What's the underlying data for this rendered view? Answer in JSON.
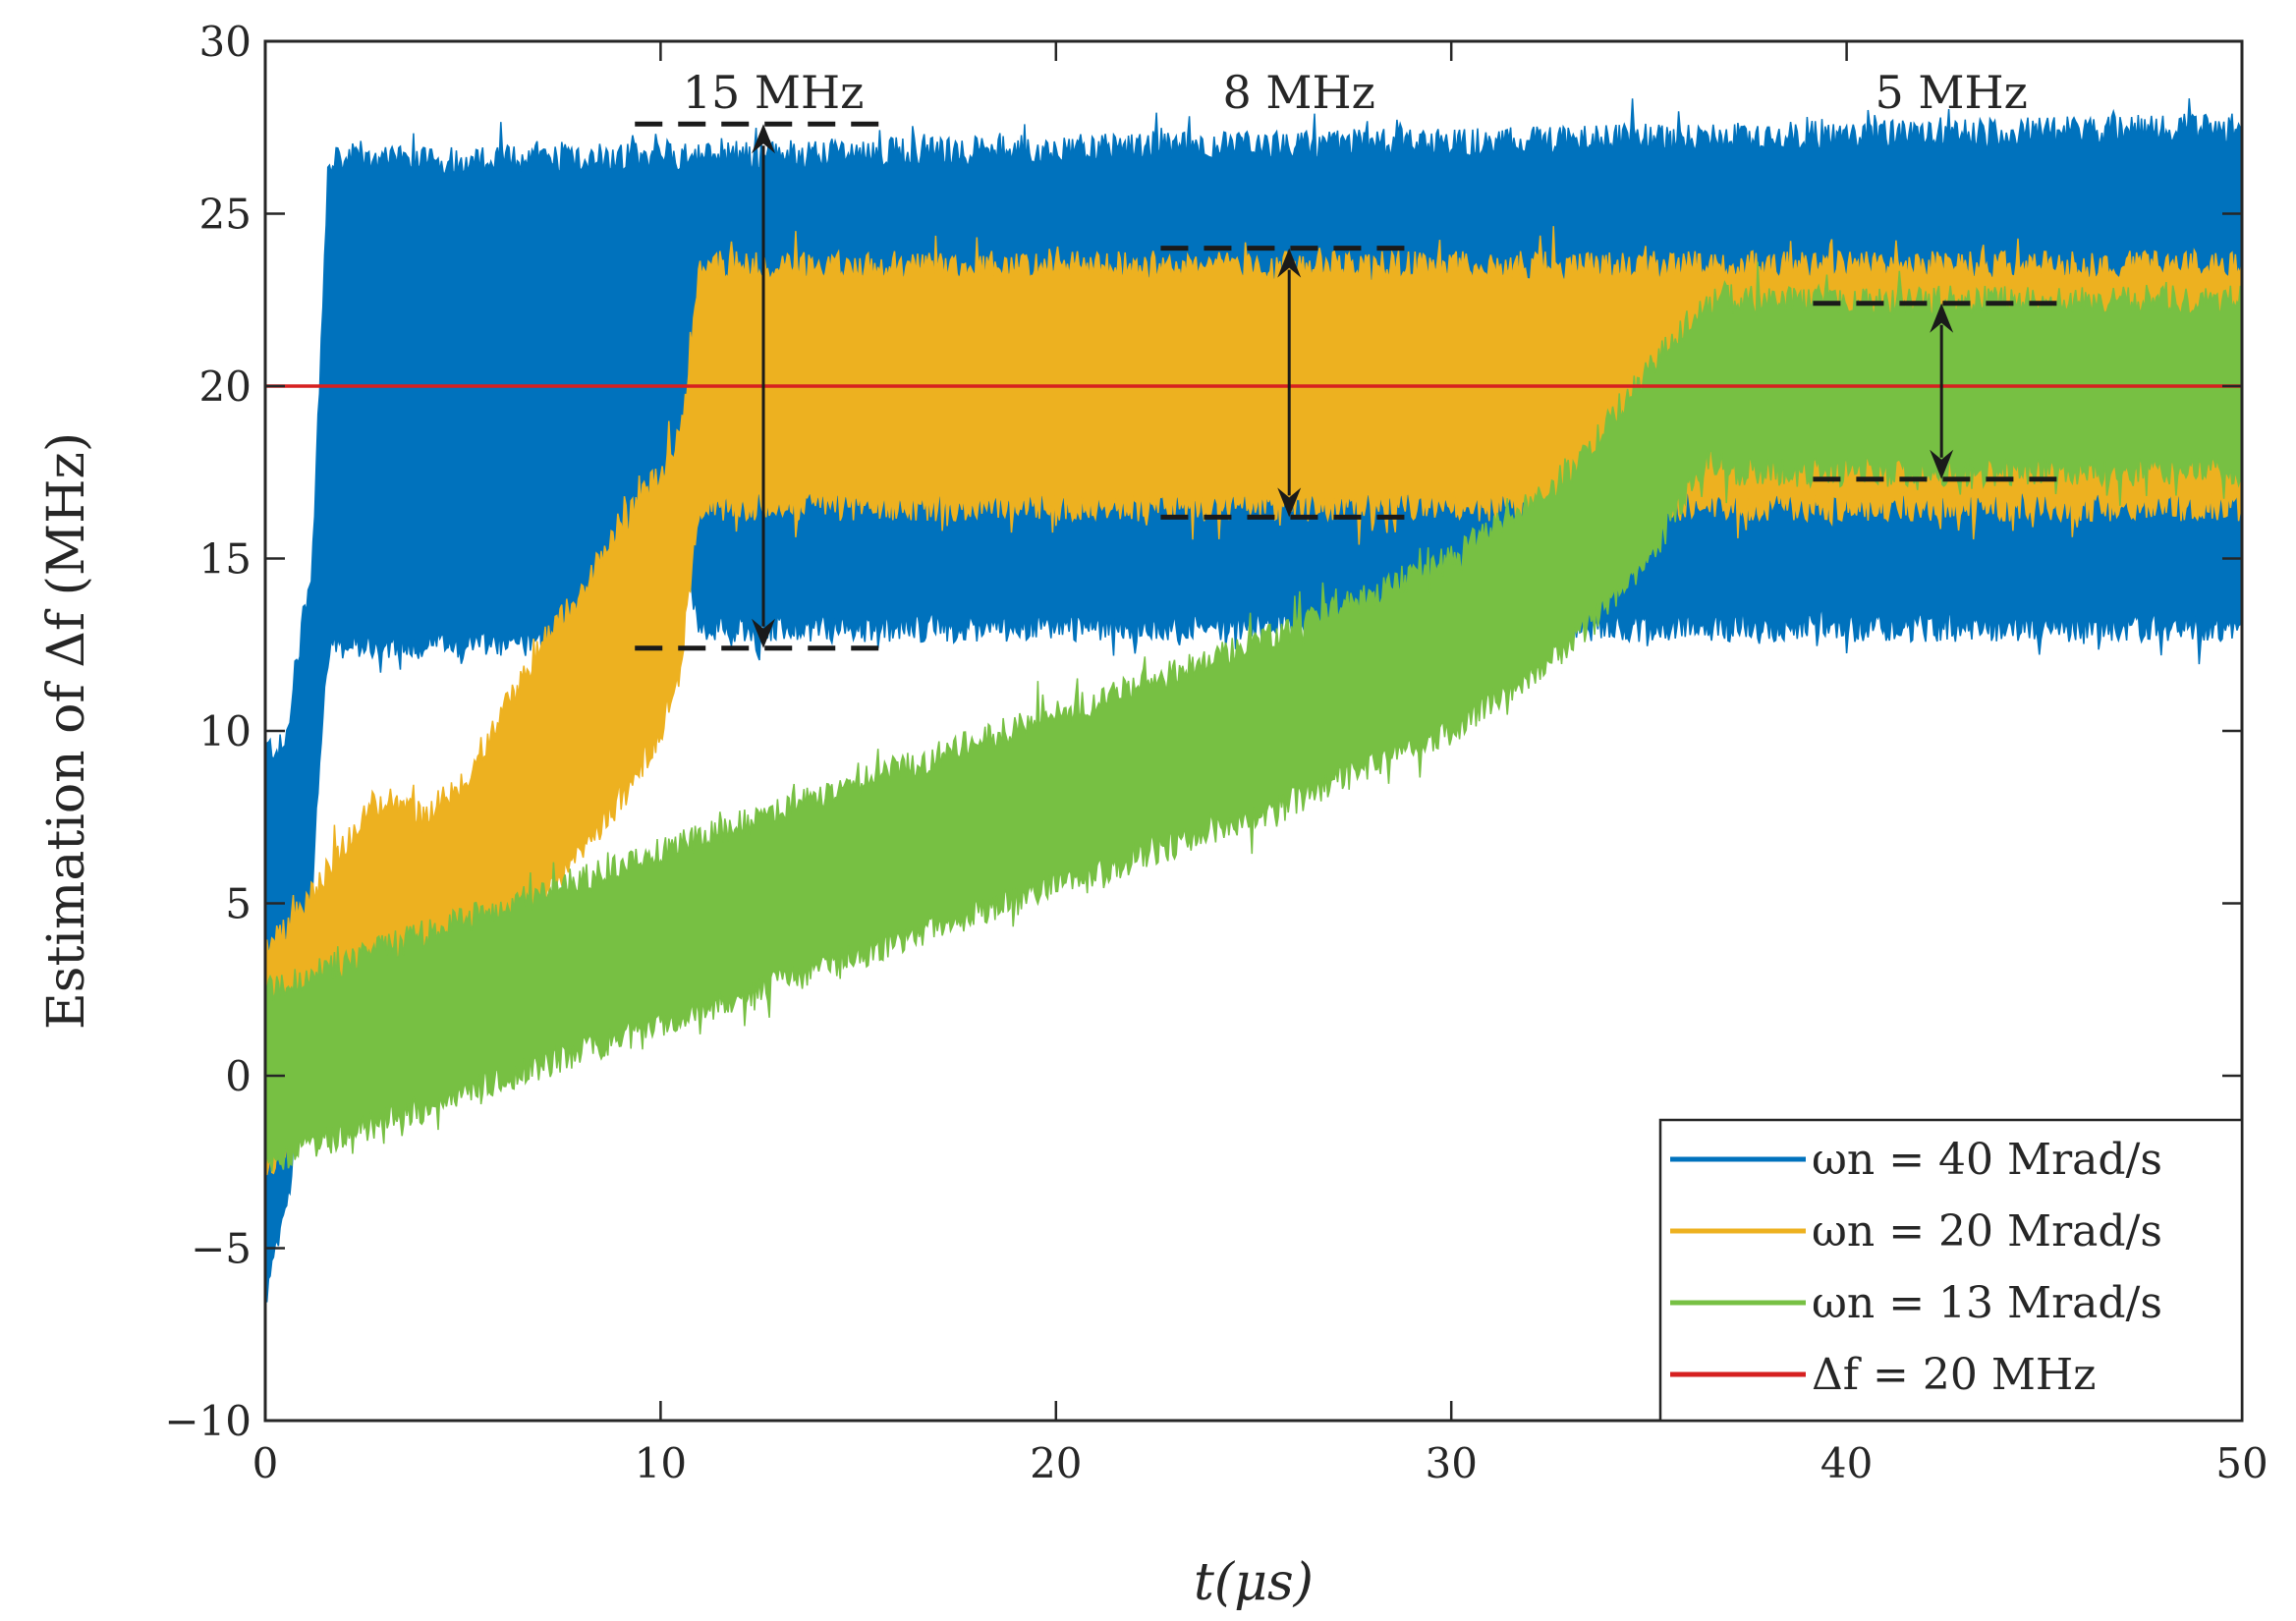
{
  "chart_data": {
    "type": "line",
    "xlabel": "t(μs)",
    "ylabel": "Estimation of Δf (MHz)",
    "xlim": [
      0,
      50
    ],
    "ylim": [
      -10,
      30
    ],
    "xticks": [
      "0",
      "10",
      "20",
      "30",
      "40",
      "50"
    ],
    "yticks": [
      "−10",
      "−5",
      "0",
      "5",
      "10",
      "15",
      "20",
      "25",
      "30"
    ],
    "grid": false,
    "legend_position": "bottom-right",
    "series": [
      {
        "name": "ωn = 40 Mrad/s",
        "color": "#0072BD",
        "kind": "noisy-band",
        "lower": [
          [
            0,
            -6.5
          ],
          [
            0.5,
            -4
          ],
          [
            1.0,
            0
          ],
          [
            1.3,
            8
          ],
          [
            1.6,
            12.5
          ],
          [
            10,
            12.5
          ],
          [
            10.5,
            15.5
          ],
          [
            11,
            13
          ],
          [
            50,
            13
          ]
        ],
        "upper": [
          [
            0,
            9.5
          ],
          [
            0.5,
            9.5
          ],
          [
            0.8,
            12
          ],
          [
            1.2,
            15
          ],
          [
            1.6,
            26.5
          ],
          [
            50,
            27.5
          ]
        ]
      },
      {
        "name": "ωn = 20 Mrad/s",
        "color": "#EDB120",
        "kind": "noisy-band",
        "lower": [
          [
            0,
            -3
          ],
          [
            0.7,
            -1
          ],
          [
            1.5,
            0
          ],
          [
            2.5,
            1
          ],
          [
            5,
            3
          ],
          [
            7,
            5
          ],
          [
            9,
            8
          ],
          [
            10,
            10
          ],
          [
            10.5,
            12
          ],
          [
            11,
            16.5
          ],
          [
            50,
            16.5
          ]
        ],
        "upper": [
          [
            0,
            3.5
          ],
          [
            1,
            5
          ],
          [
            2.5,
            7.5
          ],
          [
            3,
            8
          ],
          [
            4,
            7.5
          ],
          [
            5,
            8.5
          ],
          [
            7,
            12.5
          ],
          [
            8,
            14
          ],
          [
            9,
            16
          ],
          [
            10,
            17.5
          ],
          [
            10.5,
            18.5
          ],
          [
            11,
            23.5
          ],
          [
            50,
            23.5
          ]
        ]
      },
      {
        "name": "ωn = 13 Mrad/s",
        "color": "#77C043",
        "kind": "noisy-band",
        "lower": [
          [
            0,
            -2.5
          ],
          [
            5,
            -0.5
          ],
          [
            10,
            1.5
          ],
          [
            15,
            3.5
          ],
          [
            20,
            5.5
          ],
          [
            25,
            7.5
          ],
          [
            30,
            10
          ],
          [
            33,
            12.5
          ],
          [
            35,
            15
          ],
          [
            36.5,
            18
          ],
          [
            37,
            17.5
          ],
          [
            50,
            17.5
          ]
        ],
        "upper": [
          [
            0,
            2.5
          ],
          [
            5,
            4.5
          ],
          [
            10,
            6.5
          ],
          [
            15,
            8.5
          ],
          [
            20,
            10.5
          ],
          [
            25,
            12.5
          ],
          [
            30,
            15
          ],
          [
            33,
            17.5
          ],
          [
            35,
            20.5
          ],
          [
            36.5,
            22.5
          ],
          [
            50,
            22.5
          ]
        ]
      },
      {
        "name": "Δf = 20 MHz",
        "color": "#D62020",
        "kind": "line",
        "x": [
          0,
          50
        ],
        "y": [
          20,
          20
        ]
      }
    ],
    "annotations": [
      {
        "label": "15 MHz",
        "x": 12.6,
        "y_top": 27.6,
        "y_bottom": 12.4
      },
      {
        "label": "8 MHz",
        "x": 25.9,
        "y_top": 24.0,
        "y_bottom": 16.2
      },
      {
        "label": "5 MHz",
        "x": 42.4,
        "y_top": 22.4,
        "y_bottom": 17.3
      }
    ]
  }
}
